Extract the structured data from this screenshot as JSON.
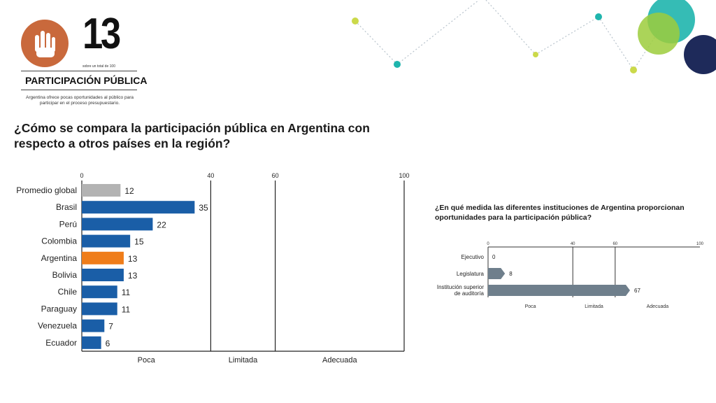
{
  "logo": {
    "number": "13",
    "subtitle": "sobre un total de 100",
    "label": "PARTICIPACIÓN PÚBLICA",
    "description": "Argentina ofrece pocas oportunidades al público para participar en el proceso presupuestario."
  },
  "colors": {
    "accent_orange": "#ef7d1a",
    "blue": "#1a5ea7",
    "gray": "#b3b3b3",
    "slate": "#6f7f8c",
    "logo_brown": "#c9693c"
  },
  "chart_data": [
    {
      "type": "bar",
      "orientation": "horizontal",
      "title": "¿Cómo se compara la participación pública en Argentina con respecto a otros países en la región?",
      "categories": [
        "Promedio global",
        "Brasil",
        "Perú",
        "Colombia",
        "Argentina",
        "Bolivia",
        "Chile",
        "Paraguay",
        "Venezuela",
        "Ecuador"
      ],
      "values": [
        12,
        35,
        22,
        15,
        13,
        13,
        11,
        11,
        7,
        6
      ],
      "bar_colors": [
        "#b3b3b3",
        "#1a5ea7",
        "#1a5ea7",
        "#1a5ea7",
        "#ef7d1a",
        "#1a5ea7",
        "#1a5ea7",
        "#1a5ea7",
        "#1a5ea7",
        "#1a5ea7"
      ],
      "xlim": [
        0,
        100
      ],
      "ticks": [
        0,
        40,
        60,
        100
      ],
      "bands": [
        "Poca",
        "Limitada",
        "Adecuada"
      ],
      "grid": "vertical lines at 40 and 60"
    },
    {
      "type": "bar",
      "orientation": "horizontal",
      "title": "¿En qué medida las diferentes instituciones de Argentina proporcionan oportunidades para la participación pública?",
      "categories": [
        "Ejecutivo",
        "Legislatura",
        "Institución superior de auditoría"
      ],
      "values": [
        0,
        8,
        67
      ],
      "xlim": [
        0,
        100
      ],
      "ticks": [
        0,
        40,
        60,
        100
      ],
      "bands": [
        "Poca",
        "Limitada",
        "Adecuada"
      ],
      "grid": "vertical lines at 40 and 60"
    }
  ]
}
